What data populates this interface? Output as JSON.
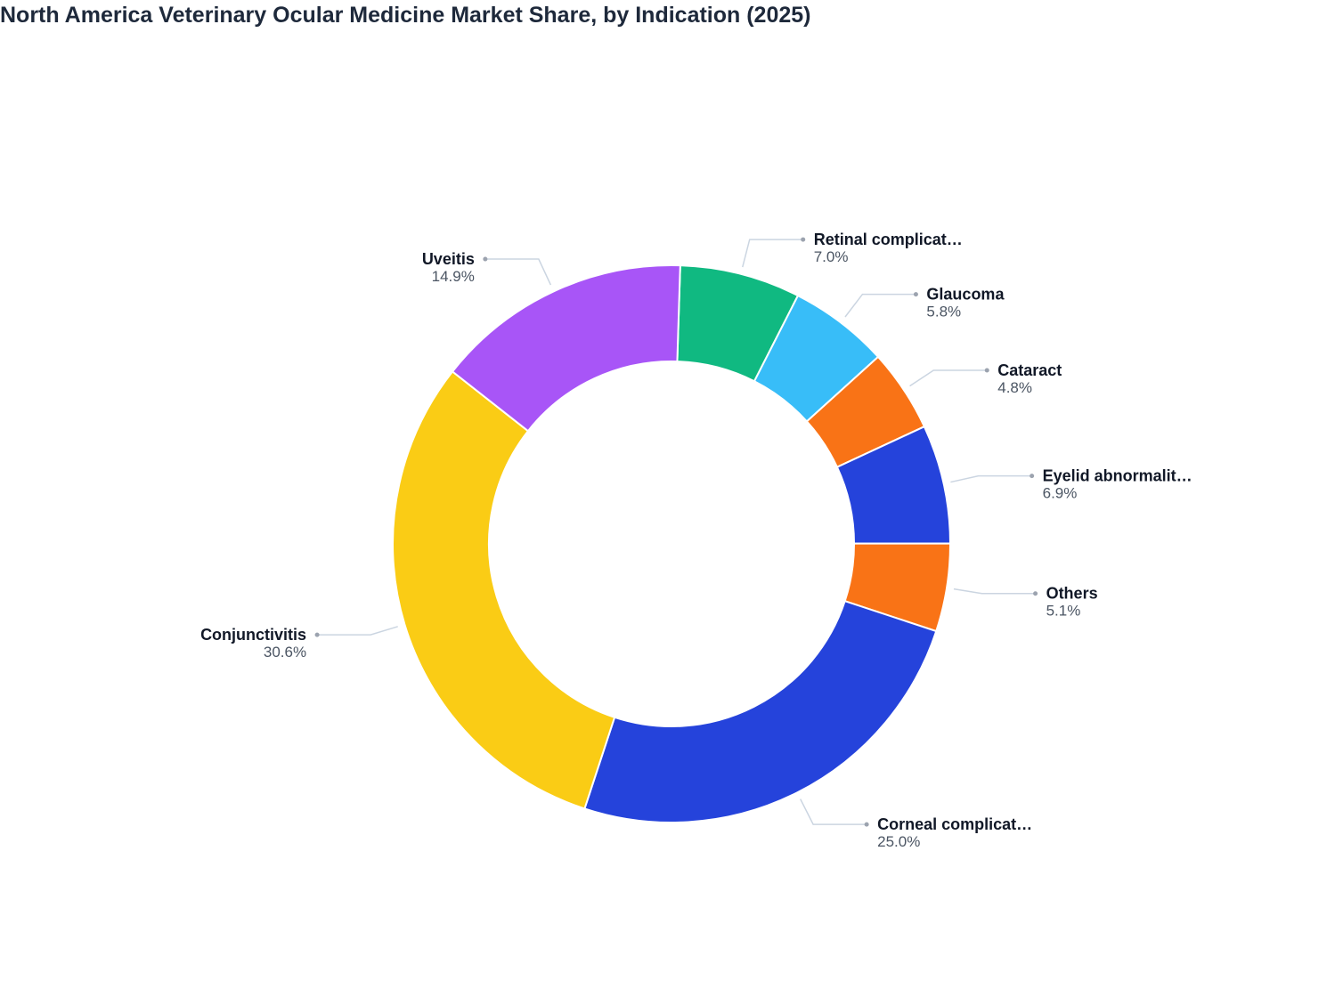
{
  "chart_data": {
    "type": "donut",
    "title": "North America Veterinary Ocular Medicine Market Share, by Indication (2025)",
    "categories": [
      "Retinal complicat…",
      "Glaucoma",
      "Cataract",
      "Eyelid abnormalit…",
      "Others",
      "Corneal complicat…",
      "Conjunctivitis",
      "Uveitis"
    ],
    "values": [
      7.0,
      5.8,
      4.8,
      6.9,
      5.1,
      25.0,
      30.6,
      14.9
    ],
    "value_labels": [
      "7.0%",
      "5.8%",
      "4.8%",
      "6.9%",
      "5.1%",
      "25.0%",
      "30.6%",
      "14.9%"
    ],
    "colors": [
      "#10b981",
      "#38bdf8",
      "#f97316",
      "#2543db",
      "#f97316",
      "#2543db",
      "#facc15",
      "#a855f7"
    ]
  }
}
